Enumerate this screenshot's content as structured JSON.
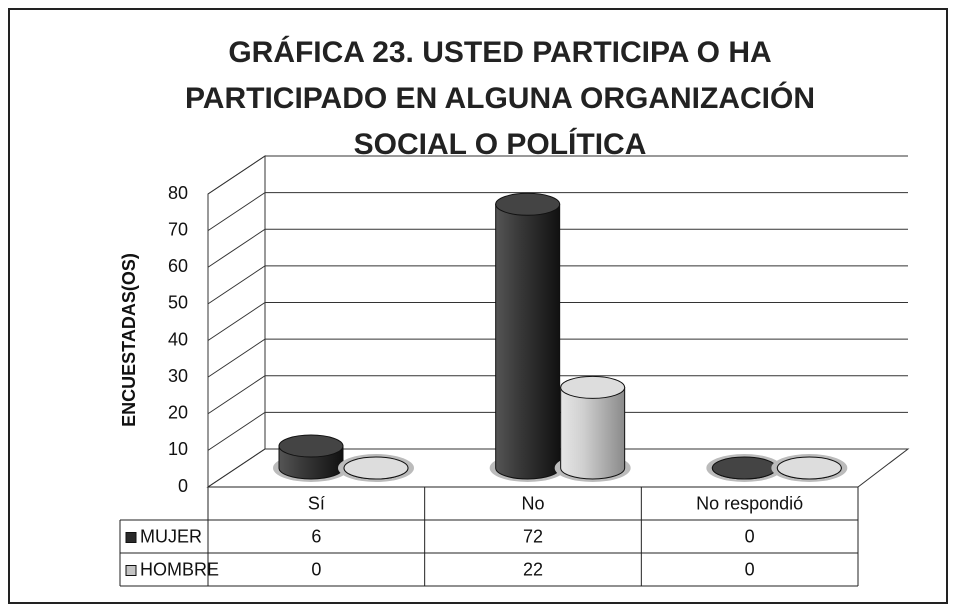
{
  "chart_data": {
    "type": "bar3d",
    "title": "GRÁFICA 23. USTED PARTICIPA O HA PARTICIPADO EN ALGUNA ORGANIZACIÓN SOCIAL O POLÍTICA",
    "y_label": "ENCUESTADAS(OS)",
    "categories": [
      "Sí",
      "No",
      "No respondió"
    ],
    "series": [
      {
        "name": "MUJER",
        "color": "#2a2a2a",
        "values": [
          6,
          72,
          0
        ]
      },
      {
        "name": "HOMBRE",
        "color": "#c4c4c4",
        "values": [
          0,
          22,
          0
        ]
      }
    ],
    "ylim": [
      0,
      80
    ],
    "yticks": [
      0,
      10,
      20,
      30,
      40,
      50,
      60,
      70,
      80
    ],
    "grid": true
  }
}
